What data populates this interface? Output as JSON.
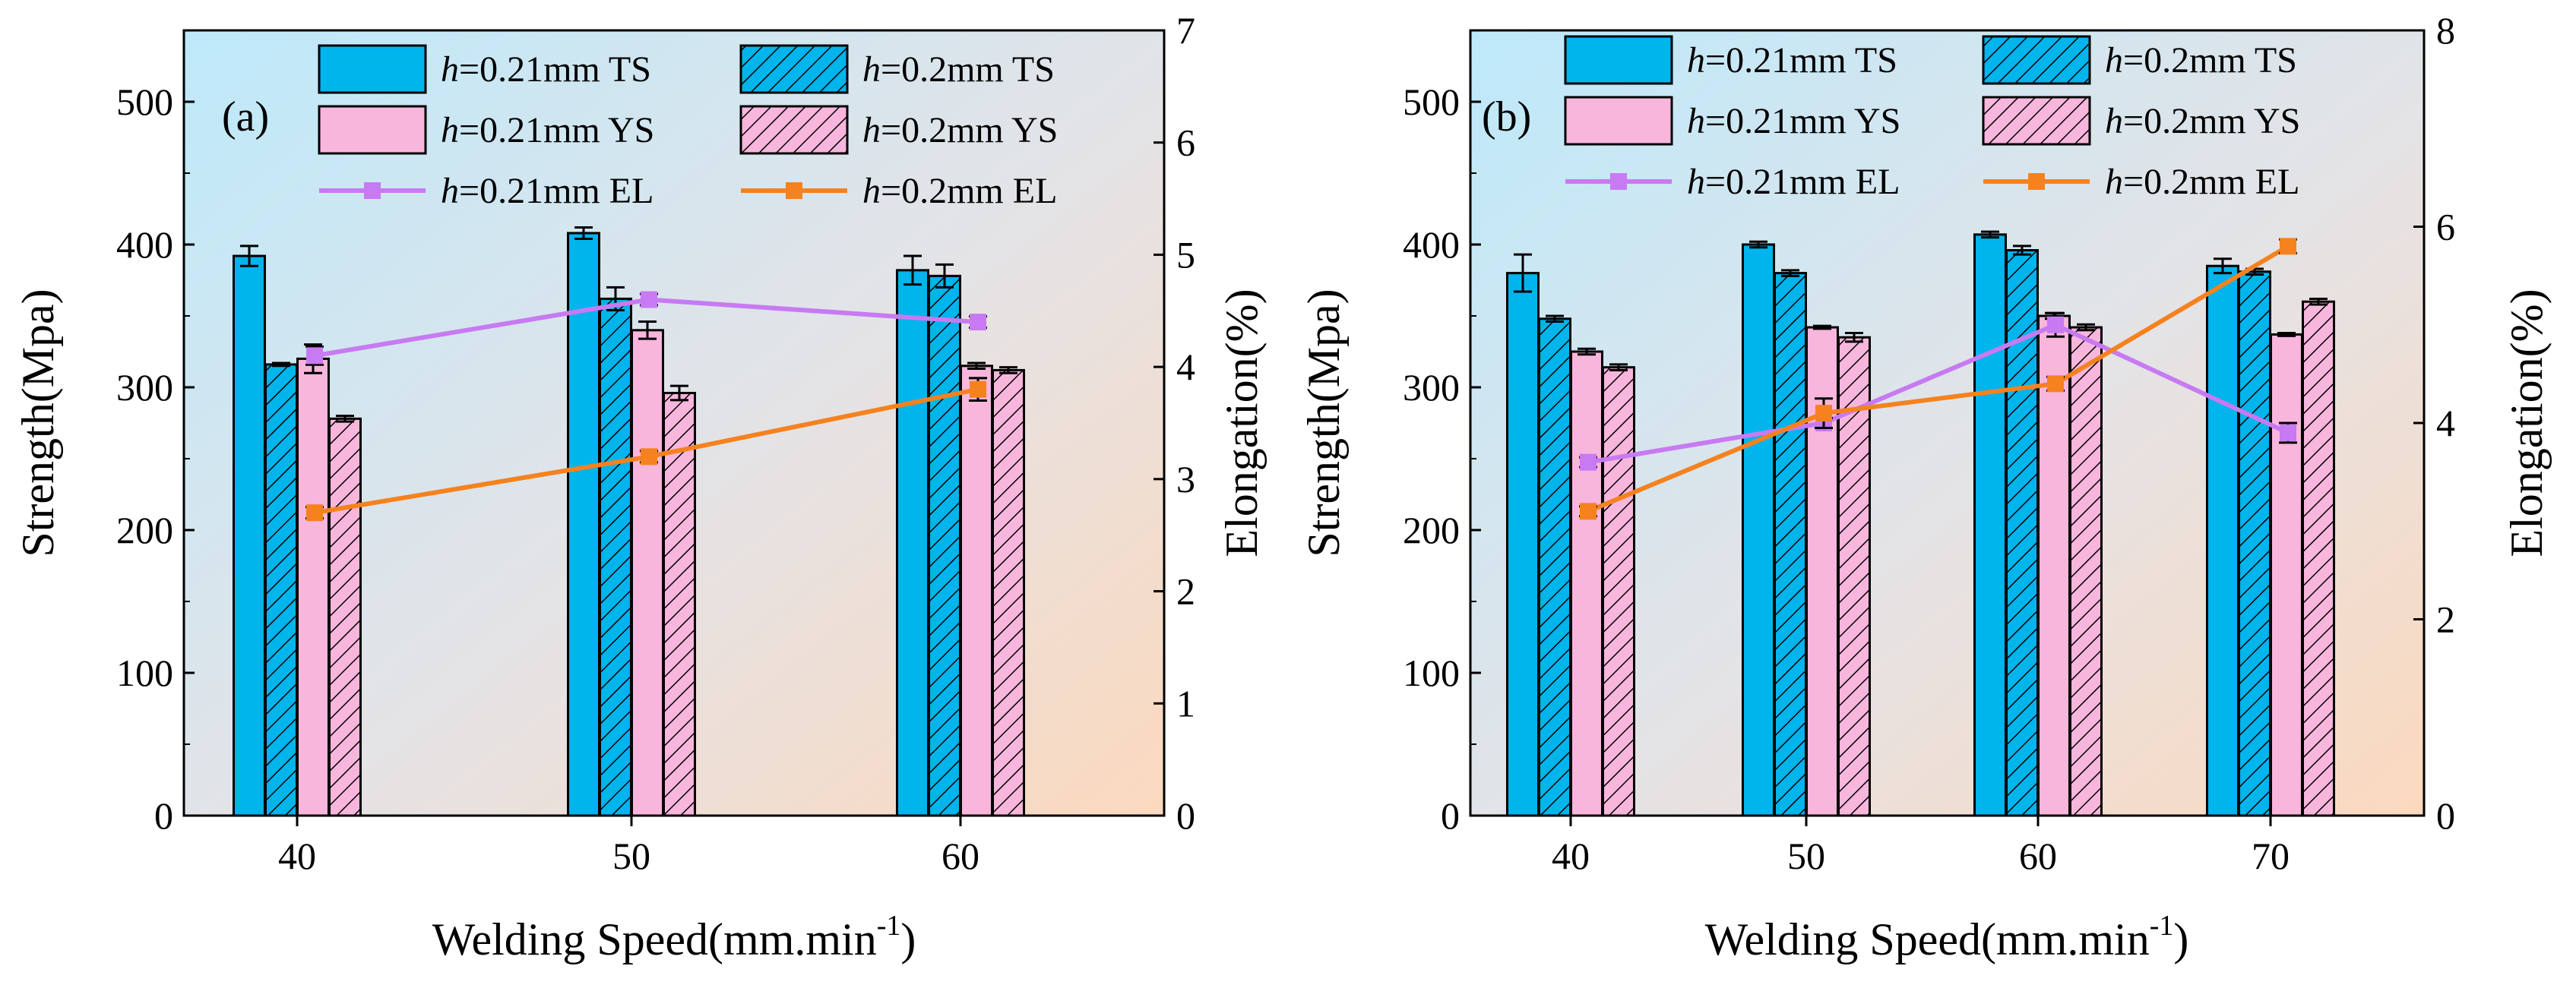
{
  "figure": {
    "colors": {
      "ts_fill": "#00B4EC",
      "ys_fill": "#F8B6DC",
      "el_021": "#C77AF2",
      "el_02": "#F5821F",
      "bg_top_left": "#BDE9FA",
      "bg_bottom_right": "#FBD9BE"
    }
  },
  "chart_data": [
    {
      "type": "bar",
      "panel_tag": "(a)",
      "xlabel": "Welding Speed(mm.min",
      "xlabel_superscript": "-1",
      "xlabel_close": ")",
      "ylabel": "Strength(Mpa)",
      "y2label": "Elongation(%)",
      "categories": [
        "40",
        "50",
        "60"
      ],
      "ylim": [
        0,
        550
      ],
      "yticks": [
        "0",
        "100",
        "200",
        "300",
        "400",
        "500"
      ],
      "y2lim": [
        0,
        7
      ],
      "y2ticks": [
        "0",
        "1",
        "2",
        "3",
        "4",
        "5",
        "6",
        "7"
      ],
      "series": [
        {
          "name_italic": "h",
          "name": "=0.21mm TS",
          "kind": "bar",
          "style": "ts",
          "values": [
            392,
            408,
            382
          ],
          "errors": [
            7,
            4,
            10
          ]
        },
        {
          "name_italic": "h",
          "name": "=0.2mm TS",
          "kind": "bar",
          "style": "ts-hatch",
          "values": [
            316,
            362,
            378
          ],
          "errors": [
            1,
            8,
            8
          ]
        },
        {
          "name_italic": "h",
          "name": "=0.21mm YS",
          "kind": "bar",
          "style": "ys",
          "values": [
            320,
            340,
            315
          ],
          "errors": [
            10,
            6,
            2
          ]
        },
        {
          "name_italic": "h",
          "name": "=0.2mm YS",
          "kind": "bar",
          "style": "ys-hatch",
          "values": [
            278,
            296,
            312
          ],
          "errors": [
            2,
            5,
            2
          ]
        },
        {
          "name_italic": "h",
          "name": "=0.21mm EL",
          "kind": "line",
          "axis": "y2",
          "style": "el-021",
          "values": [
            4.1,
            4.6,
            4.4
          ],
          "errors": [
            0.08,
            0.05,
            0.05
          ]
        },
        {
          "name_italic": "h",
          "name": "=0.2mm EL",
          "kind": "line",
          "axis": "y2",
          "style": "el-02",
          "values": [
            2.7,
            3.2,
            3.8
          ],
          "errors": [
            0.05,
            0.05,
            0.1
          ]
        }
      ]
    },
    {
      "type": "bar",
      "panel_tag": "(b)",
      "xlabel": "Welding Speed(mm.min",
      "xlabel_superscript": "-1",
      "xlabel_close": ")",
      "ylabel": "Strength(Mpa)",
      "y2label": "Elongation(%)",
      "categories": [
        "40",
        "50",
        "60",
        "70"
      ],
      "ylim": [
        0,
        550
      ],
      "yticks": [
        "0",
        "100",
        "200",
        "300",
        "400",
        "500"
      ],
      "y2lim": [
        0,
        8
      ],
      "y2ticks": [
        "0",
        "2",
        "4",
        "6",
        "8"
      ],
      "series": [
        {
          "name_italic": "h",
          "name": "=0.21mm TS",
          "kind": "bar",
          "style": "ts",
          "values": [
            380,
            400,
            407,
            385
          ],
          "errors": [
            13,
            2,
            2,
            5
          ]
        },
        {
          "name_italic": "h",
          "name": "=0.2mm TS",
          "kind": "bar",
          "style": "ts-hatch",
          "values": [
            348,
            380,
            396,
            381
          ],
          "errors": [
            2,
            2,
            3,
            2
          ]
        },
        {
          "name_italic": "h",
          "name": "=0.21mm YS",
          "kind": "bar",
          "style": "ys",
          "values": [
            325,
            342,
            350,
            337
          ],
          "errors": [
            2,
            1,
            2,
            1
          ]
        },
        {
          "name_italic": "h",
          "name": "=0.2mm YS",
          "kind": "bar",
          "style": "ys-hatch",
          "values": [
            314,
            335,
            342,
            360
          ],
          "errors": [
            2,
            3,
            2,
            2
          ]
        },
        {
          "name_italic": "h",
          "name": "=0.21mm EL",
          "kind": "line",
          "axis": "y2",
          "style": "el-021",
          "values": [
            3.6,
            4.0,
            5.0,
            3.9
          ],
          "errors": [
            0.05,
            0.05,
            0.12,
            0.1
          ]
        },
        {
          "name_italic": "h",
          "name": "=0.2mm EL",
          "kind": "line",
          "axis": "y2",
          "style": "el-02",
          "values": [
            3.1,
            4.1,
            4.4,
            5.8
          ],
          "errors": [
            0.05,
            0.15,
            0.07,
            0.07
          ]
        }
      ]
    }
  ]
}
